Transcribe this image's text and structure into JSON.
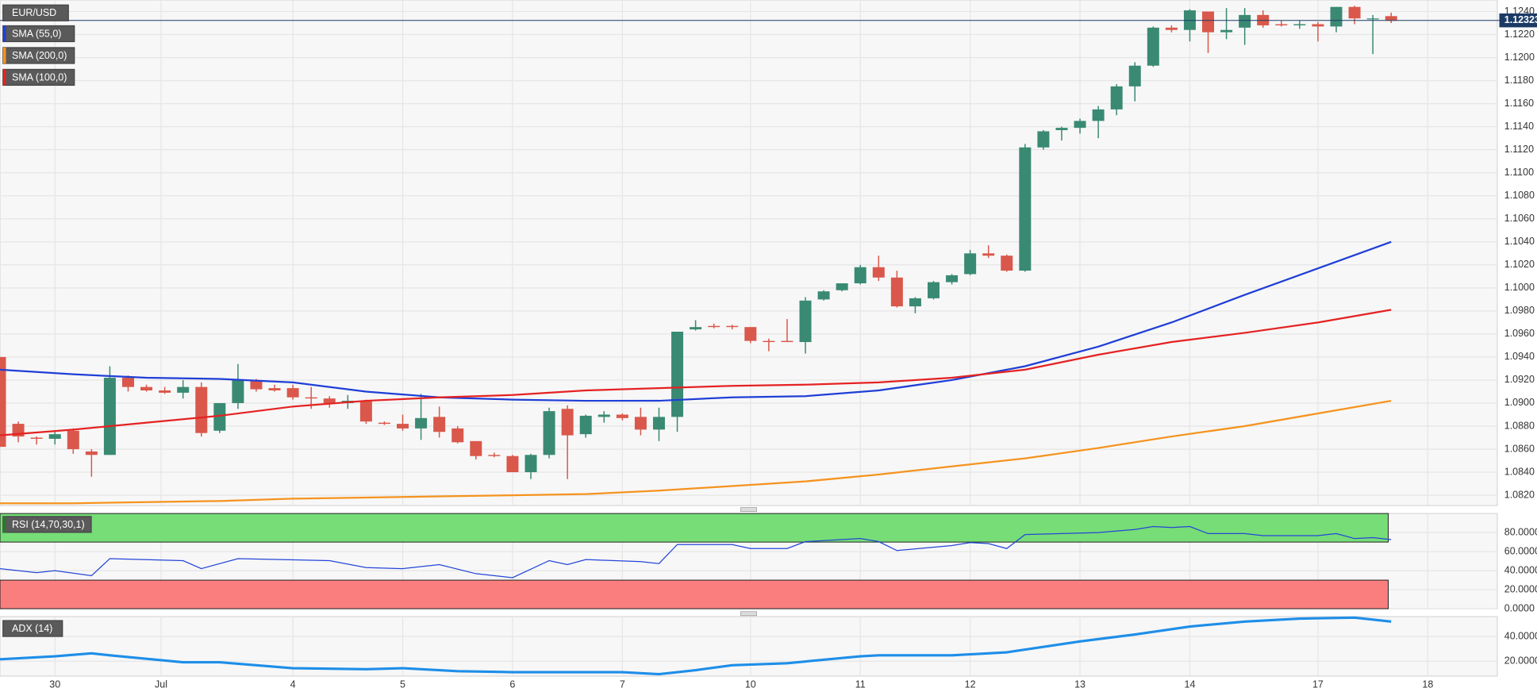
{
  "chart_data": [
    {
      "type": "candlestick",
      "title": "EUR/USD",
      "x": [
        0,
        1,
        2,
        3,
        4,
        5,
        6,
        7,
        8,
        9,
        10,
        11,
        12,
        13,
        14,
        15,
        16,
        17,
        18,
        19,
        20,
        21,
        22,
        23,
        24,
        25,
        26,
        27,
        28,
        29,
        30,
        31,
        32,
        33,
        34,
        35,
        36,
        37,
        38,
        39,
        40,
        41,
        42,
        43,
        44,
        45,
        46,
        47,
        48,
        49,
        50,
        51,
        52,
        53,
        54,
        55,
        56,
        57,
        58,
        59,
        60,
        61,
        62,
        63,
        64,
        65,
        66,
        67,
        68,
        69,
        70,
        71,
        72,
        73,
        74,
        75,
        76
      ],
      "open": [
        1.094,
        1.0882,
        1.087,
        1.0869,
        1.0876,
        1.0858,
        1.0855,
        1.0922,
        1.0914,
        1.0911,
        1.0909,
        1.0914,
        1.0876,
        1.09,
        1.092,
        1.0913,
        1.0913,
        1.0905,
        1.0904,
        1.09,
        1.0902,
        1.0883,
        1.0882,
        1.0878,
        1.0888,
        1.0878,
        1.0867,
        1.0855,
        1.0854,
        1.084,
        1.0855,
        1.0895,
        1.0873,
        1.0888,
        1.089,
        1.0888,
        1.0877,
        1.0888,
        1.0964,
        1.0967,
        1.0967,
        1.0966,
        1.0954,
        1.0954,
        1.0953,
        1.099,
        1.0998,
        1.1004,
        1.1018,
        1.1009,
        1.0984,
        1.0991,
        1.1005,
        1.1012,
        1.103,
        1.1028,
        1.1015,
        1.1122,
        1.1137,
        1.1139,
        1.1145,
        1.1155,
        1.1175,
        1.1193,
        1.1226,
        1.1224,
        1.124,
        1.1222,
        1.1226,
        1.1237,
        1.1229,
        1.1228,
        1.1229,
        1.1227,
        1.1244,
        1.1234,
        1.1236
      ],
      "high": [
        1.094,
        1.0884,
        1.0871,
        1.0876,
        1.0878,
        1.086,
        1.0932,
        1.0924,
        1.0916,
        1.0914,
        1.092,
        1.0918,
        1.09,
        1.0934,
        1.0921,
        1.0916,
        1.0916,
        1.0914,
        1.0906,
        1.0907,
        1.0903,
        1.0884,
        1.089,
        1.0908,
        1.0897,
        1.088,
        1.0867,
        1.0857,
        1.0855,
        1.0856,
        1.0896,
        1.0898,
        1.089,
        1.0893,
        1.0891,
        1.0896,
        1.0896,
        1.0962,
        1.0972,
        1.0969,
        1.0968,
        1.0966,
        1.0956,
        1.0973,
        1.0992,
        1.0998,
        1.1004,
        1.102,
        1.1028,
        1.1015,
        1.0992,
        1.1006,
        1.1012,
        1.1033,
        1.1037,
        1.1029,
        1.1125,
        1.1137,
        1.114,
        1.1147,
        1.1158,
        1.1177,
        1.1196,
        1.1227,
        1.1228,
        1.1242,
        1.124,
        1.1243,
        1.1243,
        1.1241,
        1.1232,
        1.1232,
        1.1231,
        1.1244,
        1.1245,
        1.1237,
        1.1239
      ],
      "low": [
        1.0862,
        1.0866,
        1.0864,
        1.0864,
        1.0856,
        1.0836,
        1.0855,
        1.091,
        1.091,
        1.0908,
        1.0904,
        1.0871,
        1.0874,
        1.0895,
        1.091,
        1.091,
        1.0903,
        1.0895,
        1.0896,
        1.0895,
        1.0882,
        1.0881,
        1.0876,
        1.0868,
        1.087,
        1.0865,
        1.0851,
        1.0853,
        1.084,
        1.0834,
        1.0852,
        1.0834,
        1.087,
        1.0883,
        1.0885,
        1.0872,
        1.0867,
        1.0875,
        1.0963,
        1.0965,
        1.0964,
        1.0952,
        1.0945,
        1.0953,
        1.0943,
        1.0989,
        1.0997,
        1.1003,
        1.1006,
        1.0983,
        1.0978,
        1.099,
        1.1003,
        1.1011,
        1.1026,
        1.1014,
        1.1014,
        1.112,
        1.1128,
        1.1134,
        1.113,
        1.115,
        1.1162,
        1.1192,
        1.1222,
        1.1214,
        1.1204,
        1.1216,
        1.1211,
        1.1226,
        1.1227,
        1.1225,
        1.1214,
        1.1222,
        1.1229,
        1.1203,
        1.123
      ],
      "close": [
        1.0862,
        1.0871,
        1.0869,
        1.0873,
        1.086,
        1.0855,
        1.0922,
        1.0914,
        1.0911,
        1.0909,
        1.0914,
        1.0874,
        1.09,
        1.092,
        1.0912,
        1.0911,
        1.0905,
        1.0904,
        1.09,
        1.0902,
        1.0884,
        1.0882,
        1.0878,
        1.0887,
        1.0875,
        1.0866,
        1.0854,
        1.0854,
        1.084,
        1.0855,
        1.0893,
        1.0872,
        1.0889,
        1.089,
        1.0887,
        1.0877,
        1.0888,
        1.0962,
        1.0966,
        1.0966,
        1.0966,
        1.0954,
        1.0953,
        1.0953,
        1.0989,
        1.0997,
        1.1004,
        1.1018,
        1.1009,
        1.0984,
        1.0991,
        1.1005,
        1.1011,
        1.103,
        1.1028,
        1.1015,
        1.1122,
        1.1136,
        1.1139,
        1.1145,
        1.1155,
        1.1175,
        1.1193,
        1.1226,
        1.1224,
        1.1241,
        1.1222,
        1.1224,
        1.1237,
        1.1228,
        1.1228,
        1.1229,
        1.1227,
        1.1244,
        1.1234,
        1.1234,
        1.1232
      ],
      "up_color": "#3a8a73",
      "down_color": "#d9584b",
      "series": [
        {
          "name": "SMA (55,0)",
          "color": "#1f3fd6",
          "x": [
            0,
            4,
            8,
            12,
            16,
            20,
            24,
            28,
            32,
            36,
            40,
            44,
            48,
            52,
            56,
            60,
            64,
            68,
            72,
            76
          ],
          "values": [
            1.0929,
            1.0925,
            1.0922,
            1.0921,
            1.0918,
            1.091,
            1.0905,
            1.0903,
            1.0902,
            1.0902,
            1.0905,
            1.0906,
            1.0911,
            1.092,
            1.0932,
            1.0949,
            1.097,
            1.0994,
            1.1017,
            1.104
          ]
        },
        {
          "name": "SMA (200,0)",
          "color": "#f5931e",
          "x": [
            0,
            4,
            8,
            12,
            16,
            20,
            24,
            28,
            32,
            36,
            40,
            44,
            48,
            52,
            56,
            60,
            64,
            68,
            72,
            76
          ],
          "values": [
            1.0813,
            1.0813,
            1.0814,
            1.0815,
            1.0817,
            1.0818,
            1.0819,
            1.082,
            1.0821,
            1.0824,
            1.0828,
            1.0832,
            1.0838,
            1.0845,
            1.0852,
            1.0861,
            1.0871,
            1.088,
            1.0891,
            1.0902
          ]
        },
        {
          "name": "SMA (100,0)",
          "color": "#e52222",
          "x": [
            0,
            4,
            8,
            12,
            16,
            20,
            24,
            28,
            32,
            36,
            40,
            44,
            48,
            52,
            56,
            60,
            64,
            68,
            72,
            76
          ],
          "values": [
            1.0872,
            1.0877,
            1.0883,
            1.0889,
            1.0897,
            1.0902,
            1.0905,
            1.0907,
            1.0911,
            1.0913,
            1.0915,
            1.0916,
            1.0918,
            1.0922,
            1.0929,
            1.0942,
            1.0953,
            1.0961,
            1.097,
            1.0981
          ]
        }
      ],
      "last_price": 1.12323,
      "xlim": [
        0,
        81.8
      ],
      "xticks": [
        {
          "value": 3,
          "label": "30"
        },
        {
          "value": 8.8,
          "label": "Jul"
        },
        {
          "value": 16,
          "label": "4"
        },
        {
          "value": 22,
          "label": "5"
        },
        {
          "value": 28,
          "label": "6"
        },
        {
          "value": 34,
          "label": "7"
        },
        {
          "value": 41,
          "label": "10"
        },
        {
          "value": 47,
          "label": "11"
        },
        {
          "value": 53,
          "label": "12"
        },
        {
          "value": 59,
          "label": "13"
        },
        {
          "value": 65,
          "label": "14"
        },
        {
          "value": 72,
          "label": "17"
        },
        {
          "value": 78,
          "label": "18"
        }
      ],
      "ylim": [
        1.0811,
        1.125
      ],
      "yticks": [
        {
          "value": 1.082,
          "label": "1.0820"
        },
        {
          "value": 1.084,
          "label": "1.0840"
        },
        {
          "value": 1.086,
          "label": "1.0860"
        },
        {
          "value": 1.088,
          "label": "1.0880"
        },
        {
          "value": 1.09,
          "label": "1.0900"
        },
        {
          "value": 1.092,
          "label": "1.0920"
        },
        {
          "value": 1.094,
          "label": "1.0940"
        },
        {
          "value": 1.096,
          "label": "1.0960"
        },
        {
          "value": 1.098,
          "label": "1.0980"
        },
        {
          "value": 1.1,
          "label": "1.1000"
        },
        {
          "value": 1.102,
          "label": "1.1020"
        },
        {
          "value": 1.104,
          "label": "1.1040"
        },
        {
          "value": 1.106,
          "label": "1.1060"
        },
        {
          "value": 1.108,
          "label": "1.1080"
        },
        {
          "value": 1.11,
          "label": "1.1100"
        },
        {
          "value": 1.112,
          "label": "1.1120"
        },
        {
          "value": 1.114,
          "label": "1.1140"
        },
        {
          "value": 1.116,
          "label": "1.1160"
        },
        {
          "value": 1.118,
          "label": "1.1180"
        },
        {
          "value": 1.12,
          "label": "1.1200"
        },
        {
          "value": 1.122,
          "label": "1.1220"
        },
        {
          "value": 1.124,
          "label": "1.1240"
        }
      ],
      "grid": true
    },
    {
      "type": "line",
      "title": "RSI (14,70,30,1)",
      "series": [
        {
          "color": "#2346d8",
          "x": [
            0,
            2,
            3,
            5,
            6,
            10,
            11,
            13,
            18,
            20,
            22,
            24,
            26,
            28,
            30,
            31,
            32,
            35,
            36,
            37,
            40,
            41,
            43,
            44,
            47,
            48,
            49,
            52,
            53,
            54,
            55,
            56,
            60,
            62,
            63,
            64,
            65,
            66,
            68,
            69,
            72,
            73,
            74,
            75,
            76
          ],
          "values": [
            42.1,
            37.9,
            40,
            34.7,
            52.6,
            50.5,
            42.1,
            52.6,
            50.5,
            43.2,
            42.1,
            46.3,
            36.8,
            32.6,
            50.5,
            46.3,
            51.6,
            49.5,
            47.4,
            67.4,
            67.4,
            63.2,
            63.2,
            70.5,
            73.7,
            70.5,
            61.1,
            66.3,
            69.5,
            68.4,
            63.2,
            77.9,
            80,
            83.2,
            86.3,
            85.3,
            86.3,
            78.9,
            78.9,
            76.8,
            76.8,
            78.9,
            73.7,
            74.7,
            72.6
          ]
        }
      ],
      "bands": [
        {
          "from": 70,
          "to": 100,
          "color": "#77dd77"
        },
        {
          "from": 0,
          "to": 30,
          "color": "#fa7e7e"
        }
      ],
      "ylim": [
        0,
        100
      ],
      "yticks": [
        {
          "value": 0,
          "label": "0.0000"
        },
        {
          "value": 20,
          "label": "20.0000"
        },
        {
          "value": 40,
          "label": "40.0000"
        },
        {
          "value": 60,
          "label": "60.0000"
        },
        {
          "value": 80,
          "label": "80.0000"
        }
      ],
      "grid": true
    },
    {
      "type": "line",
      "title": "ADX (14)",
      "series": [
        {
          "color": "#1e8ee8",
          "x": [
            0,
            3,
            5,
            6,
            10,
            12,
            16,
            20,
            22,
            25,
            28,
            31,
            34,
            36,
            38,
            40,
            43,
            47,
            48,
            52,
            55,
            59,
            62,
            65,
            68,
            71,
            74,
            76
          ],
          "values": [
            21.6,
            24,
            26.4,
            24.8,
            19.2,
            19.2,
            14.4,
            13.6,
            14.4,
            12,
            11.2,
            11.2,
            11.2,
            9.6,
            12.8,
            16.8,
            18.4,
            24,
            24.8,
            24.8,
            27.2,
            36,
            41.6,
            48,
            52,
            54.4,
            55.2,
            52
          ]
        }
      ],
      "ylim": [
        8,
        56
      ],
      "yticks": [
        {
          "value": 20,
          "label": "20.0000"
        },
        {
          "value": 40,
          "label": "40.0000"
        }
      ],
      "grid": true
    }
  ]
}
